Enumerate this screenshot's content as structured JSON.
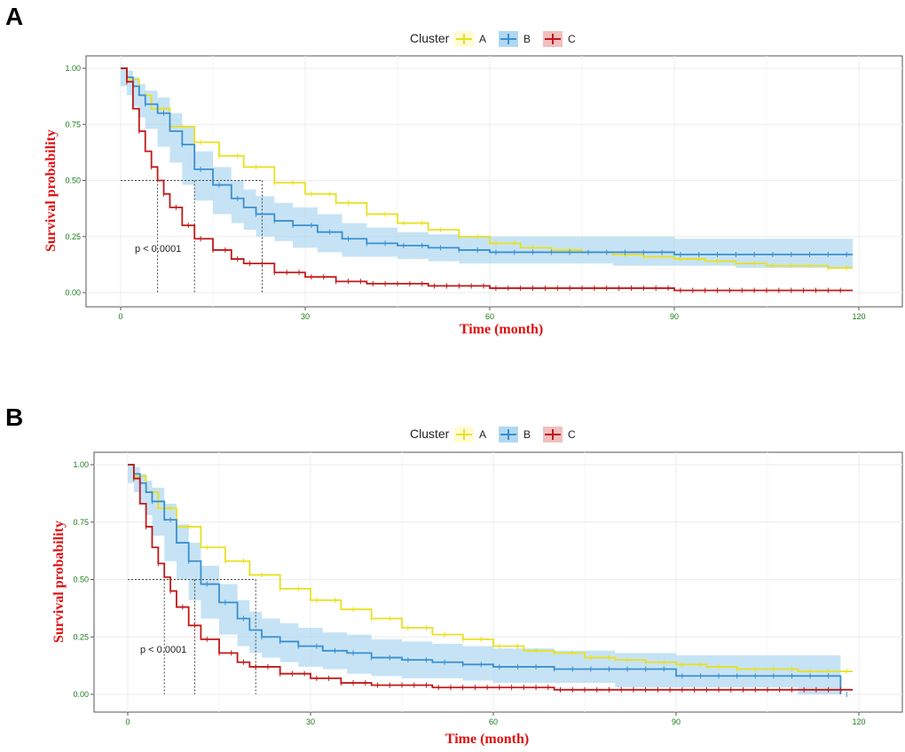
{
  "colors": {
    "A": "#e8e020",
    "B": "#3a8fd0",
    "B_band": "#a8d4f0",
    "C": "#c01818",
    "axis_title": "#e01010",
    "tick": "#1a7a1a"
  },
  "chart_data": [
    {
      "panel": "A",
      "type": "line",
      "subtype": "kaplan-meier",
      "legend_title": "Cluster",
      "legend_entries": [
        "A",
        "B",
        "C"
      ],
      "xlabel": "Time (month)",
      "ylabel": "Survival probability",
      "xticks": [
        "0",
        "30",
        "60",
        "90",
        "120"
      ],
      "yticks": [
        "0.00",
        "0.25",
        "0.50",
        "0.75",
        "1.00"
      ],
      "xlim": [
        0,
        120
      ],
      "ylim": [
        0,
        1
      ],
      "pvalue": "p < 0.0001",
      "medians": [
        6,
        12,
        23
      ],
      "series": [
        {
          "name": "A",
          "x": [
            0,
            1,
            3,
            5,
            8,
            12,
            16,
            20,
            25,
            30,
            35,
            40,
            45,
            50,
            55,
            60,
            65,
            70,
            75,
            80,
            85,
            90,
            95,
            100,
            105,
            110,
            115,
            119
          ],
          "y": [
            1.0,
            0.95,
            0.88,
            0.82,
            0.74,
            0.67,
            0.61,
            0.56,
            0.49,
            0.44,
            0.4,
            0.35,
            0.31,
            0.28,
            0.25,
            0.22,
            0.2,
            0.19,
            0.18,
            0.17,
            0.16,
            0.15,
            0.14,
            0.13,
            0.12,
            0.12,
            0.11,
            0.11
          ]
        },
        {
          "name": "B",
          "x": [
            0,
            1,
            2,
            3,
            4,
            6,
            8,
            10,
            12,
            15,
            18,
            20,
            22,
            25,
            28,
            32,
            36,
            40,
            45,
            50,
            55,
            60,
            70,
            80,
            90,
            100,
            110,
            119
          ],
          "y": [
            1.0,
            0.96,
            0.92,
            0.88,
            0.84,
            0.8,
            0.72,
            0.66,
            0.55,
            0.48,
            0.42,
            0.38,
            0.35,
            0.32,
            0.3,
            0.27,
            0.24,
            0.22,
            0.21,
            0.2,
            0.19,
            0.18,
            0.18,
            0.18,
            0.17,
            0.17,
            0.17,
            0.17
          ],
          "upper": [
            1.0,
            0.99,
            0.96,
            0.93,
            0.9,
            0.87,
            0.8,
            0.74,
            0.63,
            0.56,
            0.5,
            0.46,
            0.43,
            0.4,
            0.38,
            0.35,
            0.31,
            0.29,
            0.27,
            0.26,
            0.25,
            0.25,
            0.25,
            0.25,
            0.24,
            0.24,
            0.24,
            0.24
          ],
          "lower": [
            1.0,
            0.92,
            0.88,
            0.83,
            0.78,
            0.73,
            0.65,
            0.58,
            0.48,
            0.41,
            0.35,
            0.31,
            0.28,
            0.25,
            0.23,
            0.2,
            0.18,
            0.16,
            0.16,
            0.15,
            0.14,
            0.13,
            0.13,
            0.13,
            0.12,
            0.12,
            0.11,
            0.11
          ]
        },
        {
          "name": "C",
          "x": [
            0,
            1,
            2,
            3,
            4,
            5,
            6,
            7,
            8,
            10,
            12,
            15,
            18,
            20,
            25,
            30,
            35,
            40,
            50,
            60,
            70,
            80,
            90,
            100,
            110,
            119
          ],
          "y": [
            1.0,
            0.94,
            0.82,
            0.72,
            0.63,
            0.56,
            0.5,
            0.44,
            0.38,
            0.3,
            0.24,
            0.19,
            0.15,
            0.13,
            0.09,
            0.07,
            0.05,
            0.04,
            0.03,
            0.02,
            0.02,
            0.02,
            0.01,
            0.01,
            0.01,
            0.01
          ]
        }
      ]
    },
    {
      "panel": "B",
      "type": "line",
      "subtype": "kaplan-meier",
      "legend_title": "Cluster",
      "legend_entries": [
        "A",
        "B",
        "C"
      ],
      "xlabel": "Time (month)",
      "ylabel": "Survival probability",
      "xticks": [
        "0",
        "30",
        "60",
        "90",
        "120"
      ],
      "yticks": [
        "0.00",
        "0.25",
        "0.50",
        "0.75",
        "1.00"
      ],
      "xlim": [
        0,
        120
      ],
      "ylim": [
        0,
        1
      ],
      "pvalue": "p < 0.0001",
      "medians": [
        6,
        11,
        21
      ],
      "series": [
        {
          "name": "A",
          "x": [
            0,
            1,
            3,
            5,
            8,
            12,
            16,
            20,
            25,
            30,
            35,
            40,
            45,
            50,
            55,
            60,
            65,
            70,
            75,
            80,
            85,
            90,
            95,
            100,
            105,
            110,
            115,
            119
          ],
          "y": [
            1.0,
            0.95,
            0.88,
            0.81,
            0.73,
            0.64,
            0.58,
            0.52,
            0.46,
            0.41,
            0.37,
            0.33,
            0.29,
            0.26,
            0.24,
            0.21,
            0.19,
            0.18,
            0.16,
            0.15,
            0.14,
            0.13,
            0.12,
            0.11,
            0.11,
            0.1,
            0.1,
            0.1
          ]
        },
        {
          "name": "B",
          "x": [
            0,
            1,
            2,
            3,
            4,
            6,
            8,
            10,
            12,
            15,
            18,
            20,
            22,
            25,
            28,
            32,
            36,
            40,
            45,
            50,
            55,
            60,
            70,
            80,
            90,
            100,
            110,
            117
          ],
          "y": [
            1.0,
            0.96,
            0.92,
            0.88,
            0.84,
            0.76,
            0.66,
            0.58,
            0.48,
            0.4,
            0.33,
            0.28,
            0.25,
            0.23,
            0.21,
            0.19,
            0.18,
            0.16,
            0.15,
            0.14,
            0.13,
            0.12,
            0.11,
            0.11,
            0.08,
            0.08,
            0.08,
            0.0
          ],
          "upper": [
            1.0,
            0.99,
            0.96,
            0.93,
            0.9,
            0.83,
            0.74,
            0.66,
            0.56,
            0.48,
            0.41,
            0.36,
            0.33,
            0.31,
            0.29,
            0.27,
            0.26,
            0.24,
            0.23,
            0.22,
            0.21,
            0.2,
            0.19,
            0.18,
            0.17,
            0.17,
            0.17,
            0.17
          ],
          "lower": [
            1.0,
            0.92,
            0.88,
            0.83,
            0.78,
            0.69,
            0.58,
            0.5,
            0.41,
            0.33,
            0.26,
            0.21,
            0.18,
            0.16,
            0.14,
            0.12,
            0.11,
            0.09,
            0.08,
            0.07,
            0.07,
            0.06,
            0.05,
            0.05,
            0.03,
            0.03,
            0.03,
            0.0
          ]
        },
        {
          "name": "C",
          "x": [
            0,
            1,
            2,
            3,
            4,
            5,
            6,
            7,
            8,
            10,
            12,
            15,
            18,
            20,
            25,
            30,
            35,
            40,
            50,
            60,
            70,
            80,
            90,
            100,
            110,
            119
          ],
          "y": [
            1.0,
            0.94,
            0.83,
            0.73,
            0.64,
            0.57,
            0.51,
            0.45,
            0.38,
            0.3,
            0.24,
            0.18,
            0.14,
            0.12,
            0.09,
            0.07,
            0.05,
            0.04,
            0.03,
            0.03,
            0.02,
            0.02,
            0.02,
            0.02,
            0.02,
            0.02
          ]
        }
      ]
    }
  ]
}
